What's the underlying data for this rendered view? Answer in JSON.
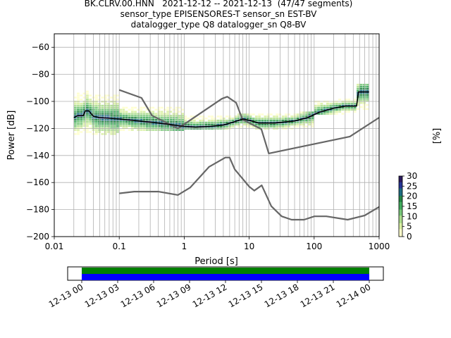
{
  "header": {
    "line1": "BK.CLRV.00.HNN   2021-12-12 -- 2021-12-13  (47/47 segments)",
    "line2": "sensor_type EPISENSORES-T sensor_sn EST-BV",
    "line3": "datalogger_type Q8 datalogger_sn Q8-BV"
  },
  "chart_data": [
    {
      "type": "heatmap",
      "subtype": "probabilistic-power-spectral-density",
      "xlabel": "Period [s]",
      "ylabel": "Power [dB]",
      "xscale": "log",
      "xlim": [
        0.01,
        1000
      ],
      "ylim": [
        -200,
        -50
      ],
      "x_ticks": [
        0.01,
        0.1,
        1,
        10,
        100,
        1000
      ],
      "x_tick_labels": [
        "0.01",
        "0.1",
        "1",
        "10",
        "100",
        "1000"
      ],
      "y_ticks": [
        -200,
        -180,
        -160,
        -140,
        -120,
        -100,
        -80,
        -60
      ],
      "y_tick_labels": [
        "−200",
        "−180",
        "−160",
        "−140",
        "−120",
        "−100",
        "−80",
        "−60"
      ],
      "grid": true,
      "colorbar": {
        "label": "[%]",
        "ticks": [
          0,
          5,
          10,
          15,
          20,
          25,
          30
        ],
        "tick_labels": [
          "0",
          "5",
          "10",
          "15",
          "20",
          "25",
          "30"
        ],
        "range": [
          0,
          30
        ],
        "colormap": [
          "#ffffcc",
          "#d9f0a3",
          "#addd8e",
          "#78c679",
          "#41ab5d",
          "#238443",
          "#1d6b80",
          "#253494",
          "#2a1a5e"
        ]
      },
      "series": [
        {
          "role": "new-high-noise-model",
          "color": "#666666",
          "points": [
            [
              0.1,
              -91.5
            ],
            [
              0.22,
              -97.4
            ],
            [
              0.32,
              -110.5
            ],
            [
              0.8,
              -120
            ],
            [
              3.8,
              -98
            ],
            [
              4.6,
              -96.5
            ],
            [
              6.3,
              -101
            ],
            [
              7.9,
              -113.5
            ],
            [
              15.4,
              -120.5
            ],
            [
              20,
              -138.5
            ],
            [
              354.8,
              -126
            ],
            [
              1000,
              -112
            ]
          ]
        },
        {
          "role": "new-low-noise-model",
          "color": "#666666",
          "points": [
            [
              0.1,
              -168
            ],
            [
              0.17,
              -166.7
            ],
            [
              0.4,
              -166.7
            ],
            [
              0.8,
              -169.2
            ],
            [
              1.24,
              -163.7
            ],
            [
              2.4,
              -148.5
            ],
            [
              4.3,
              -141.5
            ],
            [
              5,
              -141.5
            ],
            [
              6,
              -150.2
            ],
            [
              10,
              -163
            ],
            [
              12,
              -166
            ],
            [
              15.6,
              -162.1
            ],
            [
              21.9,
              -177.5
            ],
            [
              31.6,
              -185
            ],
            [
              45,
              -187.5
            ],
            [
              70,
              -187.5
            ],
            [
              101,
              -185
            ],
            [
              154,
              -185
            ],
            [
              328,
              -187.5
            ],
            [
              600,
              -184.4
            ],
            [
              1000,
              -178
            ]
          ]
        },
        {
          "role": "mode",
          "color": "#000000",
          "points": [
            [
              0.02,
              -112
            ],
            [
              0.023,
              -110.5
            ],
            [
              0.028,
              -110.5
            ],
            [
              0.03,
              -107
            ],
            [
              0.034,
              -107
            ],
            [
              0.04,
              -111
            ],
            [
              0.05,
              -112
            ],
            [
              0.1,
              -113
            ],
            [
              0.2,
              -114.5
            ],
            [
              0.4,
              -116
            ],
            [
              0.7,
              -117.5
            ],
            [
              1,
              -118.5
            ],
            [
              1.5,
              -119
            ],
            [
              2.5,
              -118.5
            ],
            [
              4,
              -117.5
            ],
            [
              6,
              -115
            ],
            [
              8,
              -113
            ],
            [
              10,
              -114
            ],
            [
              14,
              -116
            ],
            [
              25,
              -116
            ],
            [
              50,
              -114.5
            ],
            [
              80,
              -112
            ],
            [
              120,
              -108
            ],
            [
              200,
              -105
            ],
            [
              300,
              -103.5
            ],
            [
              450,
              -103.5
            ],
            [
              480,
              -93
            ],
            [
              700,
              -93
            ]
          ]
        }
      ],
      "density_bands": [
        {
          "x": [
            0.02,
            0.1
          ],
          "y": [
            -125,
            -92
          ]
        },
        {
          "x": [
            0.1,
            1
          ],
          "y": [
            -122,
            -102
          ]
        },
        {
          "x": [
            1,
            10
          ],
          "y": [
            -121,
            -110
          ]
        },
        {
          "x": [
            10,
            100
          ],
          "y": [
            -121,
            -108
          ]
        },
        {
          "x": [
            100,
            450
          ],
          "y": [
            -110,
            -98
          ]
        },
        {
          "x": [
            450,
            700
          ],
          "y": [
            -108,
            -88
          ]
        }
      ]
    },
    {
      "type": "timeline",
      "role": "data-coverage",
      "x_tick_labels": [
        "12-13 00",
        "12-13 03",
        "12-13 06",
        "12-13 09",
        "12-13 12",
        "12-13 15",
        "12-13 18",
        "12-13 21",
        "12-14 00"
      ],
      "rows": [
        {
          "color": "#008000"
        },
        {
          "color": "#0000ff"
        }
      ]
    }
  ]
}
